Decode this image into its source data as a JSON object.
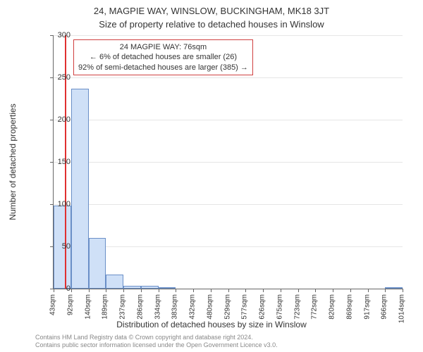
{
  "address_title": "24, MAGPIE WAY, WINSLOW, BUCKINGHAM, MK18 3JT",
  "subtitle": "Size of property relative to detached houses in Winslow",
  "ylabel": "Number of detached properties",
  "xlabel": "Distribution of detached houses by size in Winslow",
  "footer_line1": "Contains HM Land Registry data © Crown copyright and database right 2024.",
  "footer_line2": "Contains public sector information licensed under the Open Government Licence v3.0.",
  "annotation": {
    "line1": "24 MAGPIE WAY: 76sqm",
    "line2": "← 6% of detached houses are smaller (26)",
    "line3": "92% of semi-detached houses are larger (385) →",
    "border_color": "#d04040"
  },
  "marker": {
    "x_value": 76,
    "color": "#e03030"
  },
  "chart": {
    "type": "histogram",
    "background_color": "#ffffff",
    "grid_color": "#e6e6e6",
    "bar_fill": "#cfe0f7",
    "bar_border": "#6a8fc7",
    "x_start": 43,
    "x_bin_width": 48.6,
    "x_tick_labels": [
      "43sqm",
      "92sqm",
      "140sqm",
      "189sqm",
      "237sqm",
      "286sqm",
      "334sqm",
      "383sqm",
      "432sqm",
      "480sqm",
      "529sqm",
      "577sqm",
      "626sqm",
      "675sqm",
      "723sqm",
      "772sqm",
      "820sqm",
      "869sqm",
      "917sqm",
      "966sqm",
      "1014sqm"
    ],
    "y_min": 0,
    "y_max": 300,
    "y_tick_step": 50,
    "y_ticks": [
      0,
      50,
      100,
      150,
      200,
      250,
      300
    ],
    "values": [
      98,
      237,
      60,
      17,
      3,
      3,
      2,
      0,
      0,
      0,
      0,
      0,
      0,
      0,
      0,
      0,
      0,
      0,
      0,
      1
    ],
    "title_fontsize": 13,
    "label_fontsize": 12,
    "tick_fontsize": 10
  }
}
